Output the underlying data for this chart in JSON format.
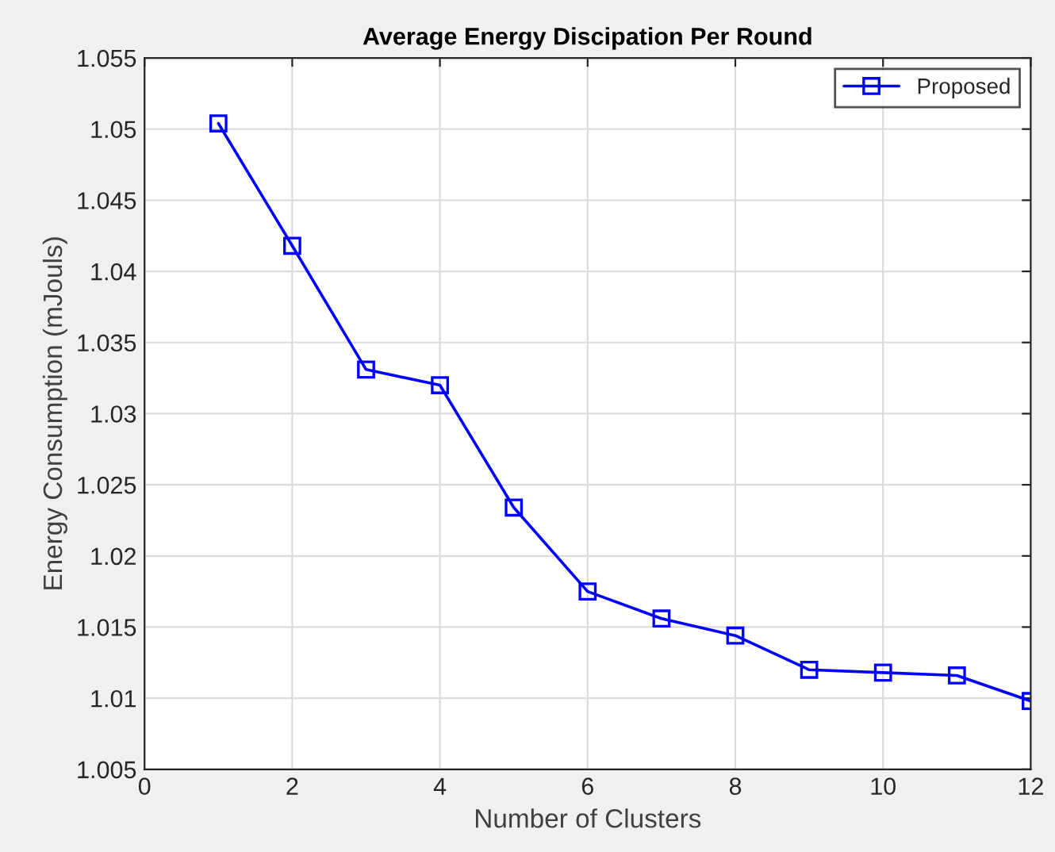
{
  "chart_data": {
    "type": "line",
    "title": "Average Energy Discipation Per Round",
    "xlabel": "Number of Clusters",
    "ylabel": "Energy Consumption (mJouls)",
    "x": [
      1,
      2,
      3,
      4,
      5,
      6,
      7,
      8,
      9,
      10,
      11,
      12
    ],
    "series": [
      {
        "name": "Proposed",
        "color": "#0000ff",
        "values": [
          1.0504,
          1.0418,
          1.0331,
          1.032,
          1.0234,
          1.0175,
          1.0156,
          1.0144,
          1.012,
          1.0118,
          1.0116,
          1.0098
        ]
      }
    ],
    "xlim": [
      0,
      12
    ],
    "xticks": [
      0,
      2,
      4,
      6,
      8,
      10,
      12
    ],
    "ylim": [
      1.005,
      1.055
    ],
    "yticks": [
      1.005,
      1.01,
      1.015,
      1.02,
      1.025,
      1.03,
      1.035,
      1.04,
      1.045,
      1.05,
      1.055
    ],
    "grid": true,
    "legend": "top right",
    "marker": "square",
    "line_style": "solid"
  }
}
